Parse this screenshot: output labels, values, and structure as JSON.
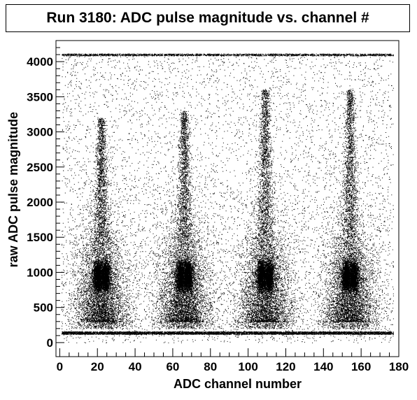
{
  "chart_data": {
    "type": "scatter",
    "title": "Run 3180: ADC pulse magnitude vs. channel #",
    "xlabel": "ADC channel number",
    "ylabel": "raw ADC pulse magnitude",
    "xlim": [
      -2,
      180
    ],
    "ylim": [
      -200,
      4300
    ],
    "x_ticks": [
      0,
      20,
      40,
      60,
      80,
      100,
      120,
      140,
      160,
      180
    ],
    "y_ticks": [
      0,
      500,
      1000,
      1500,
      2000,
      2500,
      3000,
      3500,
      4000
    ],
    "x_tick_labels": [
      "0",
      "20",
      "40",
      "60",
      "80",
      "100",
      "120",
      "140",
      "160",
      "180"
    ],
    "y_tick_labels": [
      "0",
      "500",
      "1000",
      "1500",
      "2000",
      "2500",
      "3000",
      "3500",
      "4000"
    ],
    "grid": false,
    "legend": "none",
    "marker_color": "#000000",
    "x_range_data": [
      1,
      177
    ],
    "baseline_band": {
      "y": [
        120,
        160
      ]
    },
    "saturation_band": {
      "y": [
        4085,
        4115
      ]
    },
    "clusters": [
      {
        "x_center": 22,
        "peak_y": [
          800,
          1100
        ],
        "streak_top": 3200
      },
      {
        "x_center": 66,
        "peak_y": [
          800,
          1100
        ],
        "streak_top": 3300
      },
      {
        "x_center": 109,
        "peak_y": [
          800,
          1100
        ],
        "streak_top": 3600
      },
      {
        "x_center": 154,
        "peak_y": [
          800,
          1100
        ],
        "streak_top": 3600
      }
    ]
  }
}
